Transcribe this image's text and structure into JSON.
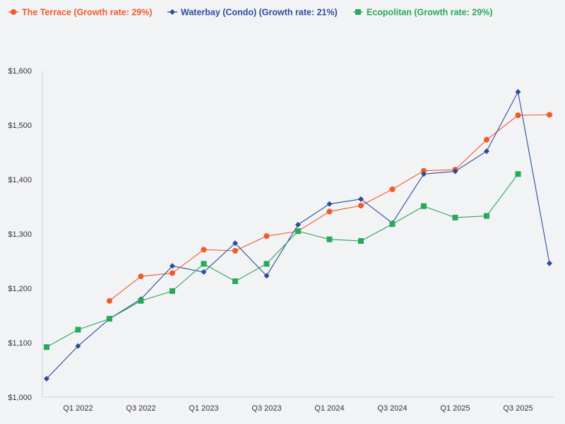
{
  "chart_data": {
    "type": "line",
    "title": "",
    "xlabel": "",
    "ylabel": "",
    "ylim": [
      1000,
      1600
    ],
    "yticks": [
      1000,
      1100,
      1200,
      1300,
      1400,
      1500,
      1600
    ],
    "ytick_labels": [
      "$1,000",
      "$1,100",
      "$1,200",
      "$1,300",
      "$1,400",
      "$1,500",
      "$1,600"
    ],
    "grid": false,
    "legend_position": "top-left",
    "x": [
      "Q4 2021",
      "Q1 2022",
      "Q2 2022",
      "Q3 2022",
      "Q4 2022",
      "Q1 2023",
      "Q2 2023",
      "Q3 2023",
      "Q4 2023",
      "Q1 2024",
      "Q2 2024",
      "Q3 2024",
      "Q4 2024",
      "Q1 2025",
      "Q2 2025",
      "Q3 2025",
      "Q4 2025"
    ],
    "x_tick_labels": [
      "Q1 2022",
      "Q3 2022",
      "Q1 2023",
      "Q3 2023",
      "Q1 2024",
      "Q3 2024",
      "Q1 2025",
      "Q3 2025"
    ],
    "series": [
      {
        "name": "The Terrace (Growth rate: 29%)",
        "color": "#f15a2b",
        "marker": "circle",
        "values": [
          null,
          null,
          1177,
          1222,
          1228,
          1271,
          1269,
          1296,
          1305,
          1341,
          1352,
          1382,
          1416,
          1418,
          1473,
          1518,
          1519
        ]
      },
      {
        "name": "Waterbay (Condo) (Growth rate: 21%)",
        "color": "#2b4c9b",
        "marker": "diamond",
        "values": [
          1034,
          1094,
          1144,
          1180,
          1241,
          1230,
          1283,
          1223,
          1317,
          1355,
          1364,
          1320,
          1410,
          1415,
          1452,
          1561,
          1246
        ]
      },
      {
        "name": "Ecopolitan (Growth rate: 29%)",
        "color": "#27a95a",
        "marker": "square",
        "values": [
          1092,
          1124,
          1144,
          1177,
          1195,
          1245,
          1213,
          1245,
          1305,
          1290,
          1287,
          1318,
          1351,
          1330,
          1333,
          1410,
          null
        ]
      }
    ]
  }
}
